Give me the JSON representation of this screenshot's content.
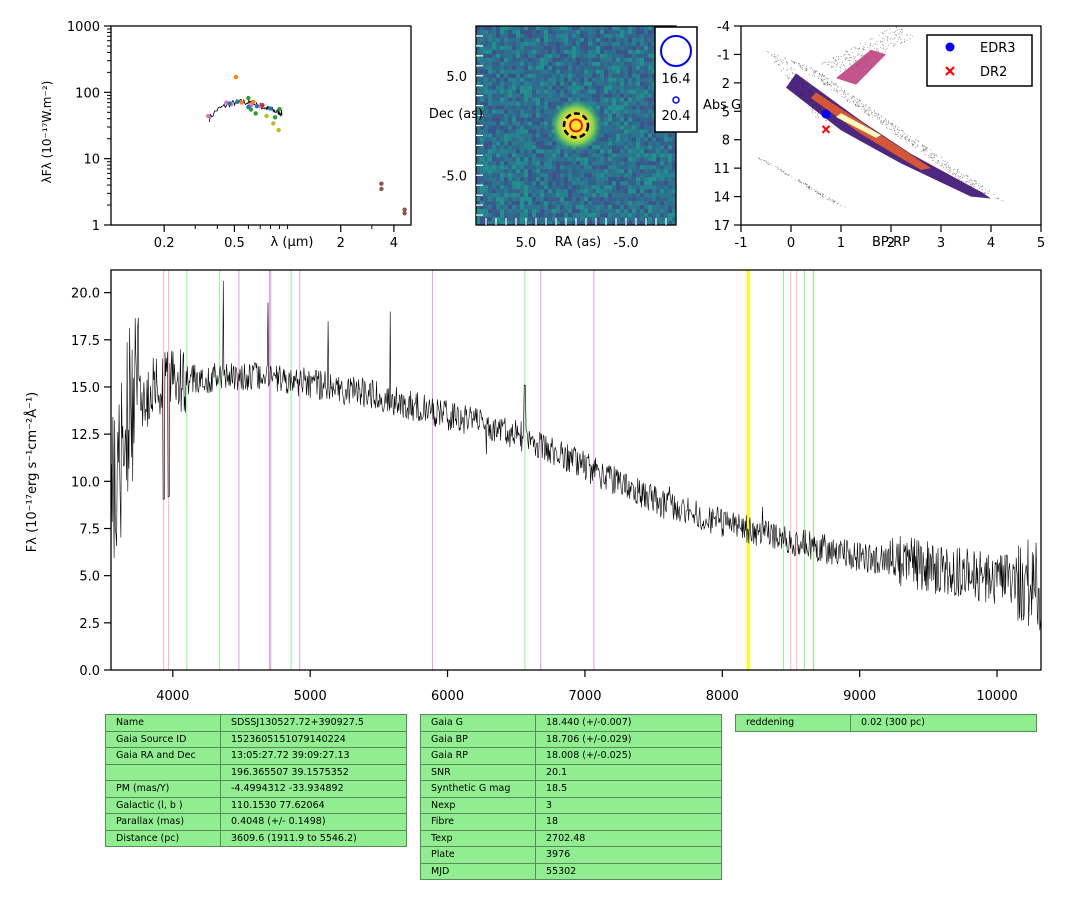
{
  "colors": {
    "gaia_marker": "#0000ff",
    "dr2_marker": "#ff0000",
    "table_bg": "#90ee90",
    "ca_lines": "#ffb6c1",
    "h_lines": "#90ee90",
    "metal_lines": "#dda0dd",
    "na_line": "#ffff00"
  },
  "chart_data": [
    {
      "type": "scatter",
      "xlabel": "λ (μm)",
      "ylabel": "λFλ (10⁻¹⁷W.m⁻²)",
      "xscale": "log",
      "yscale": "log",
      "xlim": [
        0.1,
        5
      ],
      "ylim": [
        1,
        1000
      ],
      "xticks": [
        "0.2",
        "0.5",
        "2",
        "4"
      ],
      "yticks": [
        "1",
        "10",
        "100",
        "1000"
      ],
      "spectrum": {
        "x": [
          0.36,
          0.4,
          0.45,
          0.5,
          0.55,
          0.6,
          0.65,
          0.7,
          0.75,
          0.8,
          0.85,
          0.9,
          0.93
        ],
        "y": [
          40,
          55,
          64,
          70,
          72,
          70,
          66,
          62,
          58,
          55,
          52,
          50,
          48
        ]
      },
      "photometry": [
        {
          "color": "#e377c2",
          "points": [
            [
              0.355,
              44
            ],
            [
              0.45,
              70
            ],
            [
              0.48,
              66
            ],
            [
              0.62,
              65
            ],
            [
              0.7,
              62
            ]
          ]
        },
        {
          "color": "#1f77b4",
          "points": [
            [
              0.47,
              68
            ],
            [
              0.52,
              72
            ],
            [
              0.6,
              60
            ],
            [
              0.67,
              62
            ],
            [
              0.8,
              57
            ]
          ]
        },
        {
          "color": "#ff7f0e",
          "points": [
            [
              0.51,
              170
            ],
            [
              0.55,
              70
            ],
            [
              0.64,
              72
            ]
          ]
        },
        {
          "color": "#2ca02c",
          "points": [
            [
              0.6,
              82
            ],
            [
              0.62,
              55
            ],
            [
              0.66,
              48
            ],
            [
              0.85,
              42
            ],
            [
              0.9,
              56
            ]
          ]
        },
        {
          "color": "#d62728",
          "points": [
            [
              0.72,
              64
            ]
          ]
        },
        {
          "color": "#bcbd22",
          "points": [
            [
              0.76,
              44
            ],
            [
              0.83,
              34
            ],
            [
              0.89,
              27
            ]
          ]
        },
        {
          "color": "#8c564b",
          "points": [
            [
              3.4,
              4.2
            ],
            [
              3.4,
              3.5
            ],
            [
              4.6,
              1.7
            ],
            [
              4.6,
              1.5
            ]
          ]
        }
      ]
    },
    {
      "type": "image",
      "xlabel": "RA (as)",
      "ylabel": "Dec (as)",
      "xlim": [
        10,
        -10
      ],
      "ylim": [
        -10,
        10
      ],
      "xticks": [
        "5.0",
        "-5.0"
      ],
      "yticks": [
        "5.0",
        "-5.0"
      ],
      "legend": [
        {
          "label": "16.4"
        },
        {
          "label": "20.4"
        }
      ]
    },
    {
      "type": "scatter",
      "xlabel": "BP-RP",
      "ylabel": "Abs G",
      "xlim": [
        -1,
        5
      ],
      "ylim": [
        17,
        -4
      ],
      "xticks": [
        "-1",
        "0",
        "1",
        "2",
        "3",
        "4",
        "5"
      ],
      "yticks": [
        "-4",
        "-1",
        "2",
        "5",
        "8",
        "11",
        "14",
        "17"
      ],
      "legend": [
        {
          "label": "EDR3",
          "color": "#0000ff",
          "marker": "circle"
        },
        {
          "label": "DR2",
          "color": "#ff0000",
          "marker": "x"
        }
      ],
      "legend_position": "top-right",
      "points": [
        {
          "series": "EDR3",
          "x": 0.7,
          "y": 5.3
        },
        {
          "series": "DR2",
          "x": 0.7,
          "y": 6.9
        }
      ]
    },
    {
      "type": "line",
      "ylabel": "Fλ (10⁻¹⁷erg s⁻¹cm⁻²Å⁻¹)",
      "xlim": [
        3550,
        10320
      ],
      "ylim": [
        0,
        21.2
      ],
      "xticks": [
        "4000",
        "5000",
        "6000",
        "7000",
        "8000",
        "9000",
        "10000"
      ],
      "yticks": [
        "0.0",
        "2.5",
        "5.0",
        "7.5",
        "10.0",
        "12.5",
        "15.0",
        "17.5",
        "20.0"
      ],
      "trend": {
        "x": [
          3560,
          3700,
          4000,
          4500,
          5000,
          5500,
          6000,
          6500,
          7000,
          7500,
          8000,
          8500,
          9000,
          9500,
          10000,
          10320
        ],
        "y": [
          9,
          14.2,
          15.3,
          15.6,
          15.2,
          14.5,
          13.5,
          12.5,
          10.8,
          9.0,
          7.8,
          6.8,
          6.0,
          5.5,
          4.8,
          4.5
        ]
      },
      "lines": [
        {
          "x": 3934,
          "type": "ca"
        },
        {
          "x": 3969,
          "type": "ca"
        },
        {
          "x": 4102,
          "type": "h"
        },
        {
          "x": 4341,
          "type": "h"
        },
        {
          "x": 4861,
          "type": "h"
        },
        {
          "x": 6563,
          "type": "h"
        },
        {
          "x": 4481,
          "type": "metal"
        },
        {
          "x": 4703,
          "type": "metal"
        },
        {
          "x": 4713,
          "type": "metal"
        },
        {
          "x": 4924,
          "type": "metal"
        },
        {
          "x": 5890,
          "type": "metal"
        },
        {
          "x": 6678,
          "type": "metal"
        },
        {
          "x": 7065,
          "type": "metal"
        },
        {
          "x": 8183,
          "type": "na"
        },
        {
          "x": 8195,
          "type": "na"
        },
        {
          "x": 8446,
          "type": "h"
        },
        {
          "x": 8498,
          "type": "ca"
        },
        {
          "x": 8542,
          "type": "ca"
        },
        {
          "x": 8598,
          "type": "h"
        },
        {
          "x": 8662,
          "type": "ca"
        },
        {
          "x": 8665,
          "type": "h"
        }
      ]
    }
  ],
  "table1": [
    [
      "Name",
      "SDSSJ130527.72+390927.5"
    ],
    [
      "Gaia Source ID",
      "1523605151079140224"
    ],
    [
      "Gaia RA and Dec",
      "13:05:27.72    39:09:27.13"
    ],
    [
      "",
      "196.365507    39.1575352"
    ],
    [
      "PM (mas/Y)",
      "-4.4994312    -33.934892"
    ],
    [
      "Galactic (l, b )",
      "110.1530    77.62064"
    ],
    [
      "Parallax (mas)",
      "0.4048 (+/- 0.1498)"
    ],
    [
      "Distance (pc)",
      "3609.6 (1911.9 to 5546.2)"
    ]
  ],
  "table2": [
    [
      "Gaia G",
      "18.440 (+/-0.007)"
    ],
    [
      "Gaia BP",
      "18.706 (+/-0.029)"
    ],
    [
      "Gaia RP",
      "18.008 (+/-0.025)"
    ],
    [
      "SNR",
      "20.1"
    ],
    [
      "Synthetic G mag",
      "18.5"
    ],
    [
      "Nexp",
      "3"
    ],
    [
      "Fibre",
      "18"
    ],
    [
      "Texp",
      "2702.48"
    ],
    [
      "Plate",
      "3976"
    ],
    [
      "MJD",
      "55302"
    ]
  ],
  "table3": [
    [
      "reddening",
      "0.02 (300 pc)"
    ]
  ]
}
